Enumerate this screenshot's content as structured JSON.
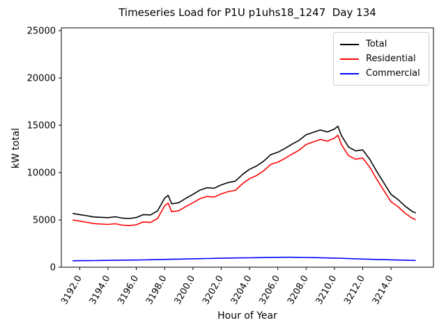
{
  "chart_data": {
    "type": "line",
    "title": "Timeseries Load for P1U p1uhs18_1247  Day 134",
    "xlabel": "Hour of Year",
    "ylabel": "kW total",
    "xlim": [
      3190.7,
      3217.0
    ],
    "ylim": [
      0,
      25300
    ],
    "grid": false,
    "legend_position": "upper right",
    "x_ticks": [
      3192,
      3194,
      3196,
      3198,
      3200,
      3202,
      3204,
      3206,
      3208,
      3210,
      3212,
      3214
    ],
    "x_tick_labels": [
      "3192.0",
      "3194.0",
      "3196.0",
      "3198.0",
      "3200.0",
      "3202.0",
      "3204.0",
      "3206.0",
      "3208.0",
      "3210.0",
      "3212.0",
      "3214.0"
    ],
    "y_ticks": [
      0,
      5000,
      10000,
      15000,
      20000,
      25000
    ],
    "y_tick_labels": [
      "0",
      "5000",
      "10000",
      "15000",
      "20000",
      "25000"
    ],
    "x": [
      3191.5,
      3192,
      3192.5,
      3193,
      3193.5,
      3194,
      3194.5,
      3195,
      3195.5,
      3196,
      3196.5,
      3197,
      3197.5,
      3198,
      3198.25,
      3198.5,
      3199,
      3199.5,
      3200,
      3200.5,
      3201,
      3201.5,
      3202,
      3202.5,
      3203,
      3203.5,
      3204,
      3204.5,
      3205,
      3205.5,
      3206,
      3206.5,
      3207,
      3207.5,
      3208,
      3208.5,
      3209,
      3209.5,
      3210,
      3210.25,
      3210.5,
      3211,
      3211.5,
      3212,
      3212.5,
      3213,
      3213.5,
      3214,
      3214.5,
      3215,
      3215.5,
      3215.75
    ],
    "series": [
      {
        "name": "Total",
        "color": "#000000",
        "values": [
          5680,
          5560,
          5440,
          5310,
          5270,
          5240,
          5330,
          5190,
          5150,
          5250,
          5560,
          5520,
          5950,
          7300,
          7600,
          6700,
          6820,
          7280,
          7700,
          8150,
          8400,
          8350,
          8700,
          8950,
          9100,
          9800,
          10350,
          10700,
          11200,
          11900,
          12150,
          12550,
          13000,
          13400,
          14000,
          14250,
          14500,
          14300,
          14600,
          14900,
          13900,
          12700,
          12300,
          12400,
          11400,
          10100,
          8900,
          7700,
          7150,
          6450,
          5900,
          5740
        ]
      },
      {
        "name": "Residential",
        "color": "#ff0000",
        "values": [
          5000,
          4870,
          4745,
          4610,
          4560,
          4520,
          4600,
          4450,
          4400,
          4490,
          4785,
          4730,
          5145,
          6480,
          6770,
          5860,
          5965,
          6410,
          6810,
          7245,
          7480,
          7415,
          7750,
          7985,
          8125,
          8815,
          9355,
          9690,
          10180,
          10865,
          11105,
          11495,
          11950,
          12360,
          12970,
          13235,
          13500,
          13320,
          13640,
          13945,
          12955,
          11790,
          11415,
          11540,
          10560,
          9280,
          8100,
          6920,
          6390,
          5710,
          5180,
          5030
        ]
      },
      {
        "name": "Commercial",
        "color": "#0000ff",
        "values": [
          680,
          690,
          695,
          700,
          710,
          720,
          730,
          740,
          750,
          760,
          775,
          790,
          805,
          820,
          830,
          840,
          855,
          870,
          890,
          905,
          920,
          935,
          950,
          965,
          975,
          985,
          995,
          1010,
          1020,
          1035,
          1045,
          1055,
          1050,
          1040,
          1030,
          1015,
          1000,
          980,
          960,
          955,
          945,
          910,
          885,
          860,
          840,
          820,
          800,
          780,
          760,
          740,
          720,
          710
        ]
      }
    ]
  },
  "legend": {
    "entries": [
      {
        "label": "Total",
        "color": "#000000"
      },
      {
        "label": "Residential",
        "color": "#ff0000"
      },
      {
        "label": "Commercial",
        "color": "#0000ff"
      }
    ]
  }
}
